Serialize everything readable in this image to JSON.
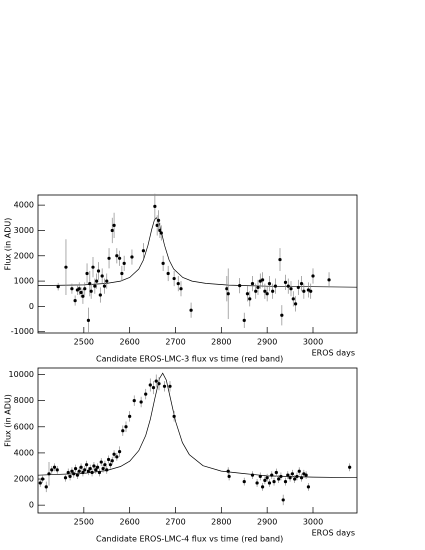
{
  "chart_data": [
    {
      "type": "scatter",
      "caption": "Candidate EROS-LMC-3    flux vs time (red band)",
      "xlabel": "EROS days",
      "ylabel": "Flux (in ADU)",
      "color": "#000000",
      "xlim": [
        2400,
        3096
      ],
      "xticks": [
        2500,
        2600,
        2700,
        2800,
        2900,
        3000
      ],
      "ylim": [
        -1050,
        4400
      ],
      "yticks": [
        -1000,
        0,
        1000,
        2000,
        3000,
        4000
      ],
      "x": [
        2444,
        2461,
        2474,
        2481,
        2486,
        2490,
        2494,
        2498,
        2502,
        2507,
        2510,
        2513,
        2516,
        2520,
        2524,
        2528,
        2532,
        2536,
        2540,
        2545,
        2550,
        2555,
        2562,
        2566,
        2572,
        2578,
        2583,
        2588,
        2605,
        2630,
        2655,
        2660,
        2663,
        2666,
        2669,
        2673,
        2684,
        2697,
        2706,
        2712,
        2734,
        2812,
        2815,
        2840,
        2850,
        2857,
        2862,
        2868,
        2875,
        2880,
        2885,
        2890,
        2895,
        2900,
        2905,
        2912,
        2918,
        2928,
        2932,
        2940,
        2946,
        2952,
        2957,
        2962,
        2968,
        2975,
        2980,
        2990,
        2995,
        3000,
        3035
      ],
      "values": [
        780,
        1550,
        700,
        230,
        650,
        700,
        550,
        400,
        700,
        1300,
        -550,
        900,
        600,
        1550,
        800,
        1000,
        1400,
        450,
        1200,
        800,
        1000,
        1900,
        3000,
        3200,
        2000,
        1900,
        1300,
        1700,
        1950,
        2200,
        3950,
        3200,
        3400,
        3000,
        2900,
        1700,
        1300,
        1100,
        900,
        700,
        -150,
        700,
        500,
        820,
        -550,
        500,
        300,
        900,
        600,
        750,
        1000,
        1050,
        600,
        500,
        900,
        600,
        800,
        1850,
        -350,
        950,
        800,
        700,
        300,
        100,
        750,
        900,
        600,
        650,
        600,
        1200,
        1050
      ],
      "errors": [
        150,
        1100,
        200,
        200,
        200,
        250,
        200,
        300,
        250,
        400,
        500,
        500,
        300,
        400,
        300,
        300,
        350,
        300,
        300,
        300,
        300,
        400,
        500,
        500,
        300,
        300,
        300,
        300,
        300,
        300,
        500,
        400,
        400,
        300,
        300,
        300,
        300,
        300,
        300,
        300,
        300,
        500,
        1000,
        300,
        300,
        300,
        300,
        300,
        300,
        300,
        300,
        300,
        300,
        300,
        300,
        300,
        300,
        450,
        400,
        300,
        300,
        300,
        300,
        300,
        300,
        300,
        300,
        300,
        300,
        300,
        300
      ],
      "fit_x": [
        2400,
        2500,
        2550,
        2580,
        2600,
        2620,
        2630,
        2640,
        2648,
        2654,
        2658,
        2662,
        2668,
        2676,
        2686,
        2696,
        2716,
        2736,
        2766,
        2816,
        2900,
        3000,
        3096
      ],
      "fit_values": [
        820,
        851,
        908,
        998,
        1140,
        1479,
        1831,
        2417,
        3037,
        3414,
        3500,
        3414,
        3037,
        2417,
        1831,
        1479,
        1140,
        998,
        908,
        840,
        800,
        780,
        760
      ]
    },
    {
      "type": "scatter",
      "caption": "Candidate EROS-LMC-4    flux vs time (red band)",
      "xlabel": "EROS days",
      "ylabel": "Flux (in ADU)",
      "color": "#000000",
      "xlim": [
        2400,
        3096
      ],
      "xticks": [
        2500,
        2600,
        2700,
        2800,
        2900,
        3000
      ],
      "ylim": [
        -600,
        10500
      ],
      "yticks": [
        0,
        2000,
        4000,
        6000,
        8000,
        10000
      ],
      "x": [
        2405,
        2410,
        2418,
        2424,
        2430,
        2436,
        2442,
        2460,
        2466,
        2470,
        2474,
        2478,
        2482,
        2486,
        2490,
        2494,
        2498,
        2502,
        2506,
        2510,
        2514,
        2518,
        2522,
        2526,
        2530,
        2534,
        2538,
        2542,
        2546,
        2550,
        2554,
        2558,
        2562,
        2566,
        2572,
        2578,
        2585,
        2592,
        2600,
        2610,
        2625,
        2635,
        2645,
        2652,
        2658,
        2664,
        2676,
        2688,
        2697,
        2815,
        2817,
        2850,
        2868,
        2878,
        2885,
        2890,
        2895,
        2900,
        2905,
        2910,
        2915,
        2920,
        2925,
        2930,
        2935,
        2940,
        2945,
        2950,
        2955,
        2960,
        2965,
        2970,
        2975,
        2980,
        2985,
        2990,
        3080
      ],
      "values": [
        1700,
        2000,
        1400,
        2400,
        2700,
        2900,
        2700,
        2100,
        2500,
        2200,
        2600,
        2400,
        2800,
        2300,
        2600,
        2900,
        2500,
        2700,
        3100,
        2600,
        2800,
        2500,
        3000,
        2700,
        2900,
        2500,
        3300,
        2800,
        3100,
        2700,
        3500,
        3100,
        3400,
        3900,
        3700,
        4100,
        5700,
        6000,
        6800,
        8000,
        7900,
        8500,
        9200,
        9000,
        9500,
        9300,
        9100,
        9100,
        6800,
        2600,
        2200,
        1800,
        2300,
        1700,
        2200,
        1400,
        1900,
        2100,
        1700,
        2300,
        1800,
        2500,
        2000,
        2200,
        400,
        1800,
        2300,
        2100,
        2400,
        2000,
        2200,
        2600,
        2100,
        2400,
        2300,
        1400,
        2900
      ],
      "errors": [
        300,
        300,
        400,
        900,
        300,
        300,
        300,
        300,
        300,
        300,
        300,
        300,
        300,
        300,
        300,
        300,
        300,
        300,
        300,
        300,
        300,
        300,
        300,
        300,
        300,
        300,
        300,
        300,
        300,
        300,
        300,
        300,
        300,
        300,
        300,
        400,
        400,
        400,
        400,
        400,
        400,
        400,
        500,
        500,
        500,
        500,
        400,
        400,
        400,
        300,
        300,
        300,
        300,
        300,
        300,
        300,
        300,
        300,
        300,
        300,
        300,
        300,
        300,
        300,
        400,
        300,
        300,
        300,
        300,
        300,
        300,
        300,
        300,
        300,
        300,
        300,
        300
      ],
      "fit_x": [
        2400,
        2500,
        2550,
        2580,
        2600,
        2620,
        2635,
        2645,
        2655,
        2665,
        2672,
        2680,
        2690,
        2700,
        2715,
        2730,
        2760,
        2800,
        2850,
        2900,
        3000,
        3096
      ],
      "fit_values": [
        2295,
        2433,
        2651,
        2960,
        3369,
        4175,
        5335,
        6565,
        8185,
        9695,
        10100,
        9576,
        8009,
        6425,
        4790,
        3867,
        3023,
        2611,
        2418,
        2240,
        2150,
        2100
      ]
    }
  ]
}
